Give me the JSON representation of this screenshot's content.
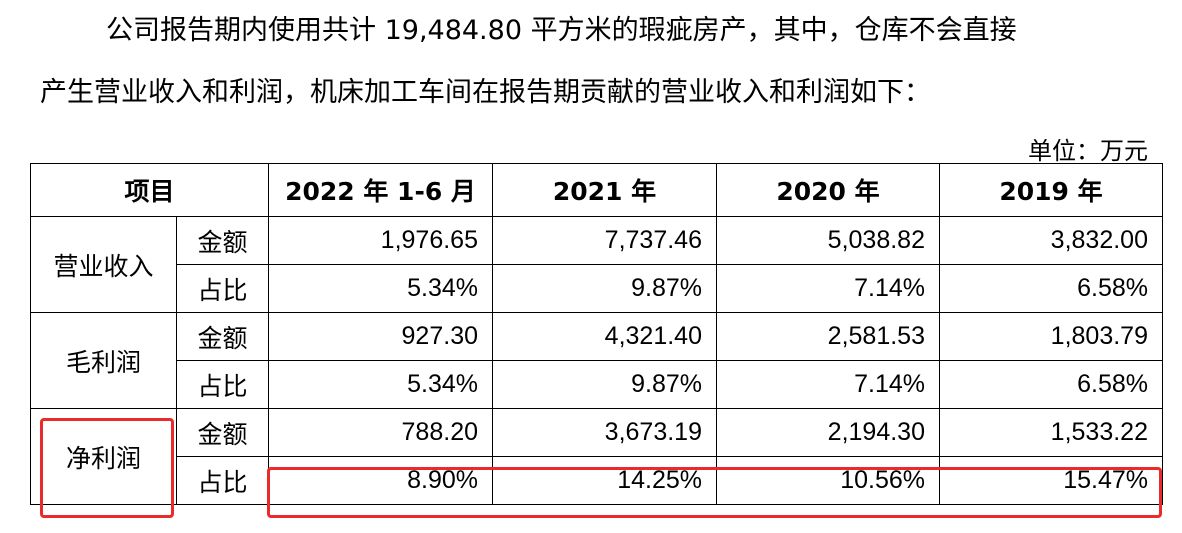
{
  "paragraph": {
    "line1": "公司报告期内使用共计 19,484.80 平方米的瑕疵房产，其中，仓库不会直接",
    "line2": "产生营业收入和利润，机床加工车间在报告期贡献的营业收入和利润如下："
  },
  "unit": "单位：万元",
  "table": {
    "headers": [
      "项目",
      "2022 年 1-6 月",
      "2021 年",
      "2020 年",
      "2019 年"
    ],
    "groups": [
      {
        "name": "营业收入",
        "rows": [
          {
            "metric": "金额",
            "values": [
              "1,976.65",
              "7,737.46",
              "5,038.82",
              "3,832.00"
            ]
          },
          {
            "metric": "占比",
            "values": [
              "5.34%",
              "9.87%",
              "7.14%",
              "6.58%"
            ]
          }
        ]
      },
      {
        "name": "毛利润",
        "rows": [
          {
            "metric": "金额",
            "values": [
              "927.30",
              "4,321.40",
              "2,581.53",
              "1,803.79"
            ]
          },
          {
            "metric": "占比",
            "values": [
              "5.34%",
              "9.87%",
              "7.14%",
              "6.58%"
            ]
          }
        ]
      },
      {
        "name": "净利润",
        "rows": [
          {
            "metric": "金额",
            "values": [
              "788.20",
              "3,673.19",
              "2,194.30",
              "1,533.22"
            ]
          },
          {
            "metric": "占比",
            "values": [
              "8.90%",
              "14.25%",
              "10.56%",
              "15.47%"
            ]
          }
        ]
      }
    ]
  },
  "highlight_color": "#ea2b2b"
}
